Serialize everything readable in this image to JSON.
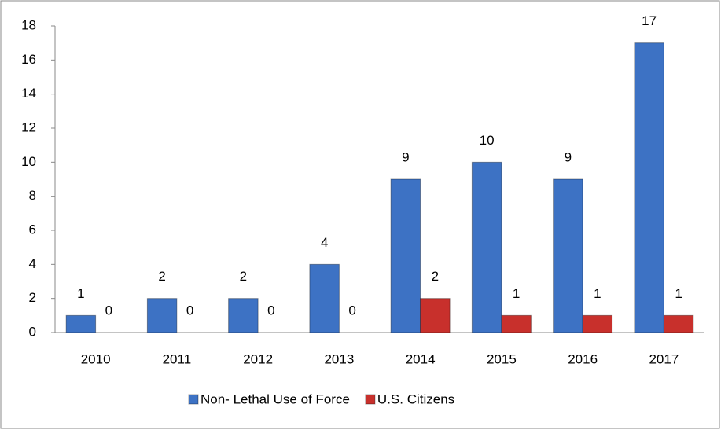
{
  "chart_data": {
    "type": "bar",
    "categories": [
      "2010",
      "2011",
      "2012",
      "2013",
      "2014",
      "2015",
      "2016",
      "2017"
    ],
    "series": [
      {
        "name": "Non- Lethal Use of Force",
        "color": "#3d72c4",
        "values": [
          1,
          2,
          2,
          4,
          9,
          10,
          9,
          17
        ]
      },
      {
        "name": "U.S. Citizens",
        "color": "#c8302c",
        "values": [
          0,
          0,
          0,
          0,
          2,
          1,
          1,
          1
        ]
      }
    ],
    "ylim": [
      0,
      18
    ],
    "yticks": [
      0,
      2,
      4,
      6,
      8,
      10,
      12,
      14,
      16,
      18
    ],
    "grid": false,
    "legend": "bottom"
  }
}
